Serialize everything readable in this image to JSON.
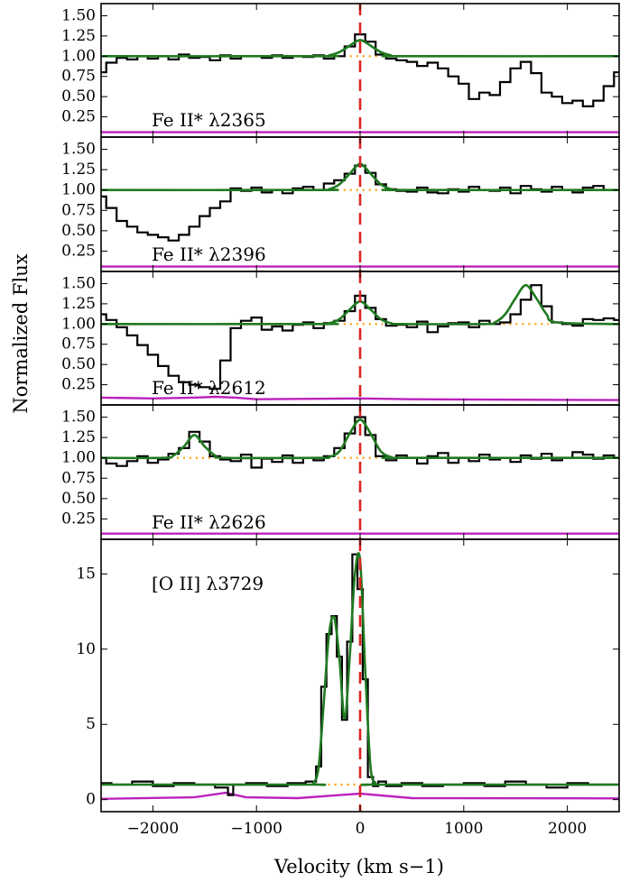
{
  "chart_data": {
    "type": "line",
    "xlabel": "Velocity (km s−1)",
    "ylabel": "Normalized Flux",
    "xlim": [
      -2500,
      2500
    ],
    "xticks": [
      -2000,
      -1000,
      0,
      1000,
      2000
    ],
    "xtick_labels": [
      "−2000",
      "−1000",
      "0",
      "1000",
      "2000"
    ],
    "reference_line": {
      "x": 0,
      "color": "#dd2222",
      "style": "dashed"
    },
    "colors": {
      "data": "#000000",
      "model": "#1f7a1f",
      "error": "#bb22bb",
      "continuum": "#ff9900"
    },
    "panels": [
      {
        "label": "Fe II* λ2365",
        "ylim": [
          0,
          1.65
        ],
        "yticks": [
          0.25,
          0.5,
          0.75,
          1.0,
          1.25,
          1.5
        ],
        "ytick_labels": [
          "0.25",
          "0.50",
          "0.75",
          "1.00",
          "1.25",
          "1.50"
        ],
        "series": [
          {
            "kind": "data",
            "x": [
              -2500,
              -2400,
              -2300,
              -2200,
              -2100,
              -2000,
              -1900,
              -1800,
              -1700,
              -1600,
              -1500,
              -1400,
              -1300,
              -1200,
              -1100,
              -1000,
              -900,
              -800,
              -700,
              -600,
              -500,
              -400,
              -300,
              -200,
              -100,
              0,
              100,
              200,
              300,
              400,
              500,
              600,
              700,
              800,
              900,
              1000,
              1100,
              1200,
              1300,
              1400,
              1500,
              1600,
              1700,
              1800,
              1900,
              2000,
              2100,
              2200,
              2300,
              2400,
              2500
            ],
            "y": [
              0.8,
              0.92,
              0.98,
              0.96,
              1.0,
              0.97,
              1.0,
              0.96,
              1.02,
              0.98,
              0.99,
              0.95,
              1.01,
              0.97,
              1.0,
              1.0,
              0.98,
              1.01,
              0.98,
              1.0,
              0.99,
              1.01,
              0.97,
              1.0,
              1.12,
              1.27,
              1.18,
              1.02,
              0.97,
              0.95,
              0.93,
              0.88,
              0.92,
              0.85,
              0.75,
              0.66,
              0.47,
              0.55,
              0.52,
              0.68,
              0.85,
              0.93,
              0.79,
              0.55,
              0.5,
              0.42,
              0.45,
              0.38,
              0.45,
              0.63,
              0.8
            ]
          },
          {
            "kind": "model",
            "x": [
              -2500,
              -400,
              -300,
              -200,
              -100,
              0,
              100,
              200,
              300,
              400,
              2500
            ],
            "y": [
              1.0,
              1.0,
              1.01,
              1.05,
              1.13,
              1.2,
              1.13,
              1.05,
              1.01,
              1.0,
              1.0
            ]
          },
          {
            "kind": "continuum",
            "x": [
              -2450,
              -2350
            ],
            "y": [
              1.0,
              1.0
            ]
          },
          {
            "kind": "continuum",
            "x": [
              -220,
              220
            ],
            "y": [
              1.0,
              1.0
            ]
          },
          {
            "kind": "error",
            "x": [
              -2500,
              2500
            ],
            "y": [
              0.06,
              0.06
            ]
          }
        ]
      },
      {
        "label": "Fe II* λ2396",
        "ylim": [
          0,
          1.65
        ],
        "yticks": [
          0.25,
          0.5,
          0.75,
          1.0,
          1.25,
          1.5
        ],
        "ytick_labels": [
          "0.25",
          "0.50",
          "0.75",
          "1.00",
          "1.25",
          "1.50"
        ],
        "series": [
          {
            "kind": "data",
            "x": [
              -2500,
              -2400,
              -2300,
              -2200,
              -2100,
              -2000,
              -1900,
              -1800,
              -1700,
              -1600,
              -1500,
              -1400,
              -1300,
              -1200,
              -1100,
              -1000,
              -900,
              -800,
              -700,
              -600,
              -500,
              -400,
              -300,
              -200,
              -100,
              0,
              100,
              200,
              300,
              400,
              500,
              600,
              700,
              800,
              900,
              1000,
              1100,
              1200,
              1300,
              1400,
              1500,
              1600,
              1700,
              1800,
              1900,
              2000,
              2100,
              2200,
              2300,
              2400,
              2500
            ],
            "y": [
              0.92,
              0.78,
              0.62,
              0.55,
              0.48,
              0.45,
              0.42,
              0.38,
              0.45,
              0.55,
              0.68,
              0.78,
              0.86,
              1.02,
              0.99,
              1.03,
              0.97,
              1.0,
              0.96,
              1.02,
              1.04,
              1.0,
              1.08,
              1.12,
              1.2,
              1.3,
              1.21,
              1.07,
              1.01,
              0.99,
              0.98,
              1.03,
              0.97,
              0.96,
              1.01,
              0.98,
              1.04,
              1.0,
              0.99,
              1.03,
              0.96,
              1.05,
              1.01,
              0.98,
              1.04,
              1.0,
              0.97,
              1.03,
              1.05,
              1.0,
              1.0
            ]
          },
          {
            "kind": "model",
            "x": [
              -2500,
              -400,
              -300,
              -200,
              -100,
              0,
              100,
              200,
              300,
              400,
              2500
            ],
            "y": [
              1.0,
              1.0,
              1.01,
              1.07,
              1.2,
              1.32,
              1.2,
              1.07,
              1.01,
              1.0,
              1.0
            ]
          },
          {
            "kind": "continuum",
            "x": [
              -220,
              220
            ],
            "y": [
              1.0,
              1.0
            ]
          },
          {
            "kind": "error",
            "x": [
              -2500,
              2500
            ],
            "y": [
              0.06,
              0.06
            ]
          }
        ]
      },
      {
        "label": "Fe II* λ2612",
        "ylim": [
          0,
          1.65
        ],
        "yticks": [
          0.25,
          0.5,
          0.75,
          1.0,
          1.25,
          1.5
        ],
        "ytick_labels": [
          "0.25",
          "0.50",
          "0.75",
          "1.00",
          "1.25",
          "1.50"
        ],
        "series": [
          {
            "kind": "data",
            "x": [
              -2500,
              -2400,
              -2300,
              -2200,
              -2100,
              -2000,
              -1900,
              -1800,
              -1700,
              -1600,
              -1500,
              -1400,
              -1300,
              -1200,
              -1100,
              -1000,
              -900,
              -800,
              -700,
              -600,
              -500,
              -400,
              -300,
              -200,
              -100,
              0,
              100,
              200,
              300,
              400,
              500,
              600,
              700,
              800,
              900,
              1000,
              1100,
              1200,
              1300,
              1400,
              1500,
              1600,
              1700,
              1800,
              1900,
              2000,
              2100,
              2200,
              2300,
              2400,
              2500
            ],
            "y": [
              1.12,
              1.05,
              0.96,
              0.86,
              0.74,
              0.62,
              0.48,
              0.36,
              0.28,
              0.25,
              0.22,
              0.2,
              0.55,
              0.95,
              1.04,
              1.08,
              0.93,
              0.97,
              0.92,
              0.99,
              1.02,
              0.95,
              1.01,
              1.04,
              1.16,
              1.35,
              1.2,
              1.06,
              0.98,
              0.99,
              0.96,
              1.03,
              0.9,
              0.97,
              1.01,
              1.02,
              0.96,
              1.04,
              1.0,
              1.02,
              1.12,
              1.3,
              1.48,
              1.22,
              1.02,
              1.0,
              0.98,
              1.06,
              1.05,
              1.07,
              1.05
            ]
          },
          {
            "kind": "model",
            "x": [
              -2500,
              -400,
              -300,
              -200,
              -100,
              0,
              100,
              200,
              300,
              400,
              1200,
              1300,
              1400,
              1500,
              1600,
              1700,
              1800,
              1900,
              2500
            ],
            "y": [
              1.0,
              1.0,
              1.01,
              1.06,
              1.18,
              1.28,
              1.18,
              1.06,
              1.01,
              1.0,
              1.0,
              1.02,
              1.12,
              1.32,
              1.48,
              1.32,
              1.12,
              1.02,
              1.0
            ]
          },
          {
            "kind": "continuum",
            "x": [
              -220,
              220
            ],
            "y": [
              1.0,
              1.0
            ]
          },
          {
            "kind": "continuum",
            "x": [
              1380,
              1820
            ],
            "y": [
              1.0,
              1.0
            ]
          },
          {
            "kind": "error",
            "x": [
              -2500,
              -2000,
              -1600,
              -1400,
              -1200,
              -1000,
              0,
              500,
              2500
            ],
            "y": [
              0.09,
              0.08,
              0.09,
              0.1,
              0.09,
              0.07,
              0.08,
              0.07,
              0.06
            ]
          }
        ]
      },
      {
        "label": "Fe II* λ2626",
        "ylim": [
          0,
          1.65
        ],
        "yticks": [
          0.25,
          0.5,
          0.75,
          1.0,
          1.25,
          1.5
        ],
        "ytick_labels": [
          "0.25",
          "0.50",
          "0.75",
          "1.00",
          "1.25",
          "1.50"
        ],
        "series": [
          {
            "kind": "data",
            "x": [
              -2500,
              -2400,
              -2300,
              -2200,
              -2100,
              -2000,
              -1900,
              -1800,
              -1700,
              -1600,
              -1500,
              -1400,
              -1300,
              -1200,
              -1100,
              -1000,
              -900,
              -800,
              -700,
              -600,
              -500,
              -400,
              -300,
              -200,
              -100,
              0,
              100,
              200,
              300,
              400,
              500,
              600,
              700,
              800,
              900,
              1000,
              1100,
              1200,
              1300,
              1400,
              1500,
              1600,
              1700,
              1800,
              1900,
              2000,
              2100,
              2200,
              2300,
              2400,
              2500
            ],
            "y": [
              1.0,
              0.93,
              0.9,
              0.96,
              1.02,
              0.94,
              0.98,
              1.05,
              1.12,
              1.32,
              1.2,
              1.02,
              0.98,
              0.96,
              1.04,
              0.88,
              0.99,
              0.95,
              1.03,
              0.94,
              1.0,
              0.97,
              1.02,
              1.12,
              1.3,
              1.5,
              1.28,
              1.02,
              0.97,
              1.03,
              1.0,
              0.93,
              1.02,
              1.06,
              0.94,
              1.0,
              0.96,
              1.04,
              0.98,
              1.0,
              0.95,
              1.03,
              0.99,
              1.05,
              0.97,
              1.0,
              1.07,
              1.04,
              0.99,
              1.03,
              1.0
            ]
          },
          {
            "kind": "model",
            "x": [
              -2500,
              -1900,
              -1800,
              -1700,
              -1600,
              -1500,
              -1400,
              -1300,
              -400,
              -300,
              -200,
              -100,
              0,
              100,
              200,
              300,
              400,
              2500
            ],
            "y": [
              1.0,
              1.0,
              1.03,
              1.14,
              1.28,
              1.14,
              1.03,
              1.0,
              1.0,
              1.01,
              1.08,
              1.3,
              1.47,
              1.3,
              1.08,
              1.01,
              1.0,
              1.0
            ]
          },
          {
            "kind": "continuum",
            "x": [
              -1830,
              -1370
            ],
            "y": [
              1.0,
              1.0
            ]
          },
          {
            "kind": "continuum",
            "x": [
              -220,
              220
            ],
            "y": [
              1.0,
              1.0
            ]
          },
          {
            "kind": "error",
            "x": [
              -2500,
              2500
            ],
            "y": [
              0.07,
              0.07
            ]
          }
        ]
      },
      {
        "label": "[O II] λ3729",
        "ylim": [
          -0.8,
          17.3
        ],
        "yticks": [
          0,
          5,
          10,
          15
        ],
        "ytick_labels": [
          "0",
          "5",
          "10",
          "15"
        ],
        "series": [
          {
            "kind": "data",
            "x": [
              -2500,
              -2300,
              -2100,
              -1900,
              -1700,
              -1500,
              -1300,
              -1250,
              -1200,
              -1000,
              -800,
              -600,
              -450,
              -400,
              -350,
              -300,
              -250,
              -200,
              -150,
              -100,
              -50,
              0,
              50,
              100,
              150,
              200,
              300,
              500,
              700,
              900,
              1100,
              1300,
              1500,
              1700,
              1900,
              2100,
              2300,
              2500
            ],
            "y": [
              1.1,
              1.0,
              1.2,
              0.9,
              1.1,
              1.0,
              0.8,
              0.3,
              1.0,
              1.1,
              0.9,
              1.1,
              1.2,
              2.2,
              7.5,
              11.0,
              12.2,
              9.5,
              5.3,
              10.5,
              16.3,
              14.0,
              8.0,
              1.5,
              0.9,
              1.2,
              0.9,
              1.1,
              0.9,
              1.0,
              1.1,
              0.9,
              1.2,
              1.0,
              0.8,
              1.1,
              1.0,
              1.0
            ]
          },
          {
            "kind": "model",
            "x": [
              -2500,
              -500,
              -450,
              -400,
              -350,
              -300,
              -250,
              -200,
              -150,
              -100,
              -50,
              0,
              50,
              100,
              150,
              200,
              2500
            ],
            "y": [
              1.0,
              1.0,
              1.1,
              2.2,
              6.5,
              11.0,
              12.1,
              9.4,
              5.4,
              9.5,
              15.0,
              15.9,
              8.5,
              2.2,
              1.1,
              1.0,
              1.0
            ]
          },
          {
            "kind": "continuum",
            "x": [
              -430,
              180
            ],
            "y": [
              1.0,
              1.0
            ]
          },
          {
            "kind": "error",
            "x": [
              -2500,
              -1600,
              -1300,
              -1100,
              -600,
              0,
              500,
              2500
            ],
            "y": [
              0.05,
              0.15,
              0.45,
              0.15,
              0.1,
              0.4,
              0.1,
              0.08
            ]
          }
        ]
      }
    ]
  }
}
